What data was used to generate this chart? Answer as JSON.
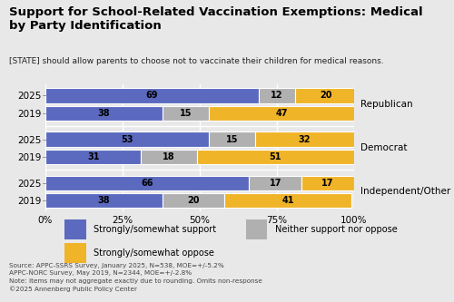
{
  "title": "Support for School-Related Vaccination Exemptions: Medical\nby Party Identification",
  "subtitle": "[STATE] should allow parents to choose not to vaccinate their children for medical reasons.",
  "groups": [
    "Republican",
    "Democrat",
    "Independent/Other"
  ],
  "years": [
    "2025",
    "2019"
  ],
  "data": {
    "Republican": {
      "2025": [
        69,
        12,
        20
      ],
      "2019": [
        38,
        15,
        47
      ]
    },
    "Democrat": {
      "2025": [
        53,
        15,
        32
      ],
      "2019": [
        31,
        18,
        51
      ]
    },
    "Independent/Other": {
      "2025": [
        66,
        17,
        17
      ],
      "2019": [
        38,
        20,
        41
      ]
    }
  },
  "colors": [
    "#5b6abf",
    "#b0b0b0",
    "#f0b429"
  ],
  "legend_labels": [
    "Strongly/somewhat support",
    "Neither support nor oppose",
    "Strongly/somewhat oppose"
  ],
  "background_color": "#e8e8e8",
  "bar_height": 0.32,
  "footnote": "Source: APPC-SSRS Survey, January 2025, N=538, MOE=+/-5.2%\nAPPC-NORC Survey, May 2019, N=2344, MOE=+/-2.8%\nNote: Items may not aggregate exactly due to rounding. Omits non-response\n©2025 Annenberg Public Policy Center"
}
